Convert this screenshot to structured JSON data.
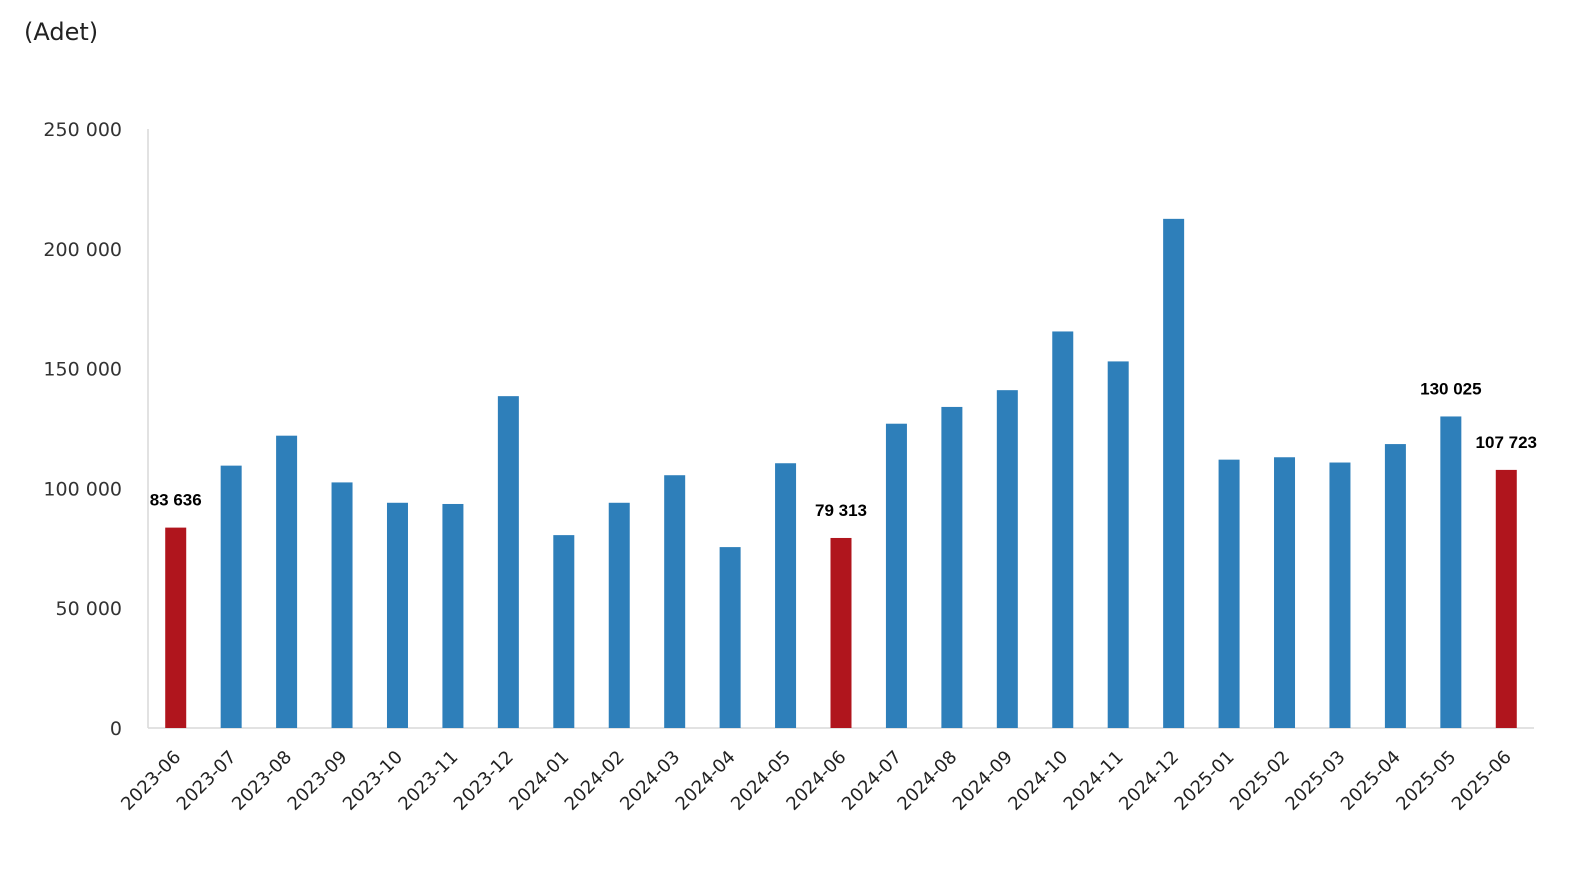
{
  "chart_data": {
    "type": "bar",
    "title": "",
    "unit_label": "(Adet)",
    "xlabel": "",
    "ylabel": "",
    "ylim": [
      0,
      250000
    ],
    "yticks": [
      0,
      50000,
      100000,
      150000,
      200000,
      250000
    ],
    "ytick_labels": [
      "0",
      "50 000",
      "100 000",
      "150 000",
      "200 000",
      "250 000"
    ],
    "grid": false,
    "legend": "none",
    "categories": [
      "2023-06",
      "2023-07",
      "2023-08",
      "2023-09",
      "2023-10",
      "2023-11",
      "2023-12",
      "2024-01",
      "2024-02",
      "2024-03",
      "2024-04",
      "2024-05",
      "2024-06",
      "2024-07",
      "2024-08",
      "2024-09",
      "2024-10",
      "2024-11",
      "2024-12",
      "2025-01",
      "2025-02",
      "2025-03",
      "2025-04",
      "2025-05",
      "2025-06"
    ],
    "values": [
      83636,
      109500,
      122000,
      102500,
      94000,
      93500,
      138500,
      80500,
      94000,
      105500,
      75500,
      110500,
      79313,
      127000,
      134000,
      141000,
      165500,
      153000,
      212500,
      112000,
      113000,
      110800,
      118500,
      130025,
      107723
    ],
    "highlighted": [
      true,
      false,
      false,
      false,
      false,
      false,
      false,
      false,
      false,
      false,
      false,
      false,
      true,
      false,
      false,
      false,
      false,
      false,
      false,
      false,
      false,
      false,
      false,
      false,
      true
    ],
    "data_labels": {
      "0": "83 636",
      "12": "79 313",
      "23": "130 025",
      "24": "107 723"
    },
    "colors": {
      "bar": "#2e7fba",
      "highlight": "#b0151d",
      "axis": "#d9d9d9"
    }
  }
}
